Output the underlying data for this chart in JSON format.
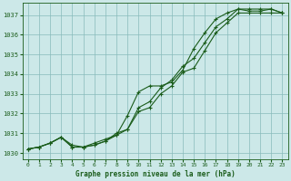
{
  "title": "Graphe pression niveau de la mer (hPa)",
  "bg_color": "#cce8e8",
  "grid_color": "#88bbbb",
  "line_color": "#1a5c1a",
  "xlim": [
    -0.5,
    23.5
  ],
  "ylim": [
    1029.7,
    1037.6
  ],
  "xticks": [
    0,
    1,
    2,
    3,
    4,
    5,
    6,
    7,
    8,
    9,
    10,
    11,
    12,
    13,
    14,
    15,
    16,
    17,
    18,
    19,
    20,
    21,
    22,
    23
  ],
  "yticks": [
    1030,
    1031,
    1032,
    1033,
    1034,
    1035,
    1036,
    1037
  ],
  "series1_x": [
    0,
    1,
    2,
    3,
    4,
    5,
    6,
    7,
    8,
    9,
    10,
    11,
    12,
    13,
    14,
    15,
    16,
    17,
    18,
    19,
    20,
    21,
    22,
    23
  ],
  "series1_y": [
    1030.2,
    1030.3,
    1030.5,
    1030.8,
    1030.4,
    1030.3,
    1030.5,
    1030.7,
    1030.9,
    1031.9,
    1033.1,
    1033.4,
    1033.4,
    1033.6,
    1034.2,
    1035.3,
    1036.1,
    1036.8,
    1037.1,
    1037.3,
    1037.2,
    1037.2,
    1037.3,
    1037.1
  ],
  "series2_x": [
    0,
    1,
    2,
    3,
    4,
    5,
    6,
    7,
    8,
    9,
    10,
    11,
    12,
    13,
    14,
    15,
    16,
    17,
    18,
    19,
    20,
    21,
    22,
    23
  ],
  "series2_y": [
    1030.2,
    1030.3,
    1030.5,
    1030.8,
    1030.3,
    1030.3,
    1030.4,
    1030.6,
    1031.0,
    1031.2,
    1032.1,
    1032.3,
    1033.0,
    1033.4,
    1034.1,
    1034.3,
    1035.2,
    1036.1,
    1036.6,
    1037.1,
    1037.1,
    1037.1,
    1037.1,
    1037.1
  ],
  "series3_x": [
    0,
    1,
    2,
    3,
    4,
    5,
    6,
    7,
    8,
    9,
    10,
    11,
    12,
    13,
    14,
    15,
    16,
    17,
    18,
    19,
    20,
    21,
    22,
    23
  ],
  "series3_y": [
    1030.2,
    1030.3,
    1030.5,
    1030.8,
    1030.3,
    1030.3,
    1030.4,
    1030.6,
    1030.9,
    1031.2,
    1032.3,
    1032.6,
    1033.3,
    1033.7,
    1034.4,
    1034.8,
    1035.6,
    1036.4,
    1036.8,
    1037.3,
    1037.3,
    1037.3,
    1037.3,
    1037.1
  ]
}
